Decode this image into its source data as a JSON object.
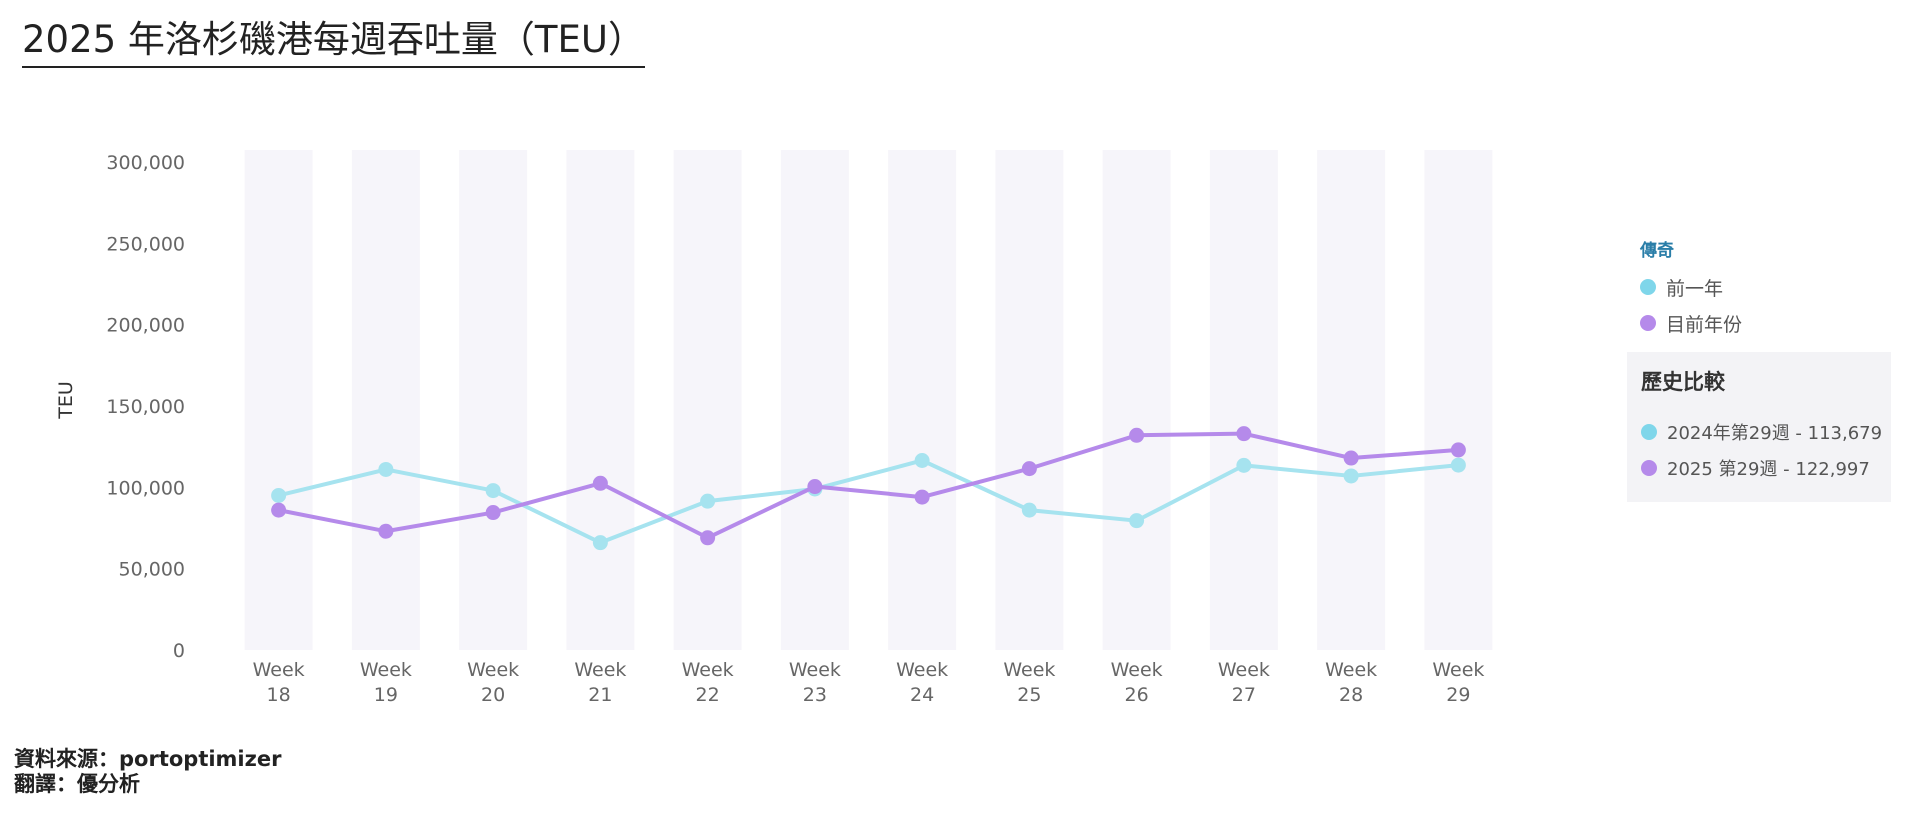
{
  "title": "2025 年洛杉磯港每週吞吐量（TEU）",
  "chart_data": {
    "type": "line",
    "categories": [
      [
        "Week",
        "18"
      ],
      [
        "Week",
        "19"
      ],
      [
        "Week",
        "20"
      ],
      [
        "Week",
        "21"
      ],
      [
        "Week",
        "22"
      ],
      [
        "Week",
        "23"
      ],
      [
        "Week",
        "24"
      ],
      [
        "Week",
        "25"
      ],
      [
        "Week",
        "26"
      ],
      [
        "Week",
        "27"
      ],
      [
        "Week",
        "28"
      ],
      [
        "Week",
        "29"
      ]
    ],
    "ylabel": "TEU",
    "ylim": [
      0,
      300000
    ],
    "yticks": [
      0,
      50000,
      100000,
      150000,
      200000,
      250000,
      300000
    ],
    "ytick_labels": [
      "0",
      "50,000",
      "100,000",
      "150,000",
      "200,000",
      "250,000",
      "300,000"
    ],
    "series": [
      {
        "name": "前一年",
        "color": "#a6e3ef",
        "values": [
          95000,
          111000,
          98000,
          66000,
          91500,
          99000,
          116500,
          86000,
          79500,
          113500,
          107000,
          113679
        ]
      },
      {
        "name": "目前年份",
        "color": "#b58aea",
        "values": [
          86000,
          73000,
          84500,
          102500,
          69000,
          100500,
          94000,
          111500,
          132000,
          133000,
          118000,
          122997
        ]
      }
    ],
    "grid": "alternating-column-bands",
    "legend_position": "right"
  },
  "legend": {
    "title": "傳奇",
    "items": [
      {
        "label": "前一年",
        "color": "#7fd6ea"
      },
      {
        "label": "目前年份",
        "color": "#b58aea"
      }
    ]
  },
  "history": {
    "title": "歷史比較",
    "items": [
      {
        "label": "2024年第29週 - 113,679",
        "color": "#7fd6ea"
      },
      {
        "label": "2025 第29週 - 122,997",
        "color": "#b58aea"
      }
    ]
  },
  "footer": {
    "source": "資料來源：portoptimizer",
    "translation": "翻譯：優分析"
  }
}
